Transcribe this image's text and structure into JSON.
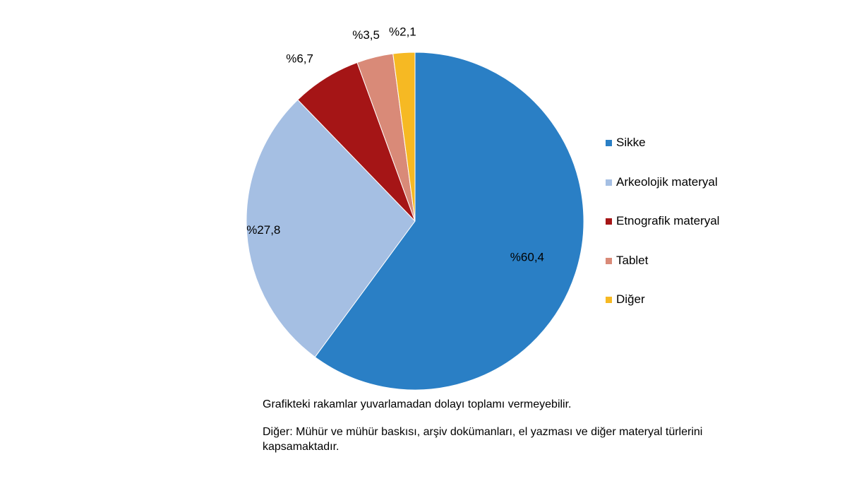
{
  "chart_data": {
    "type": "pie",
    "title": "",
    "slices": [
      {
        "name": "Sikke",
        "value": 60.4,
        "label": "%60,4",
        "color": "#2A7FC5"
      },
      {
        "name": "Arkeolojik materyal",
        "value": 27.8,
        "label": "%27,8",
        "color": "#A5BFE3"
      },
      {
        "name": "Etnografik materyal",
        "value": 6.7,
        "label": "%6,7",
        "color": "#A51516"
      },
      {
        "name": "Tablet",
        "value": 3.5,
        "label": "%3,5",
        "color": "#D98A78"
      },
      {
        "name": "Diğer",
        "value": 2.1,
        "label": "%2,1",
        "color": "#F6B923"
      }
    ],
    "start_angle_deg": 0,
    "direction": "clockwise",
    "legend_position": "right"
  },
  "notes": {
    "line1": "Grafikteki rakamlar yuvarlamadan dolayı toplamı vermeyebilir.",
    "line2": "Diğer: Mühür ve mühür baskısı, arşiv dokümanları, el yazması ve diğer materyal türlerini kapsamaktadır."
  }
}
